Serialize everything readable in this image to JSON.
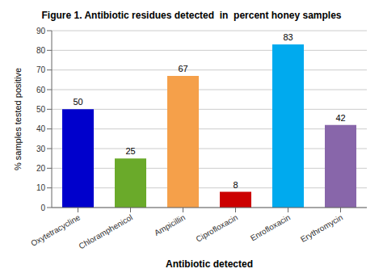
{
  "chart_data": {
    "type": "bar",
    "title": "Figure 1. Antibiotic residues detected  in  percent honey samples",
    "xlabel": "Antibiotic detected",
    "ylabel": "% samples tested positive",
    "categories": [
      "Oxytetracycline",
      "Chloramphenicol",
      "Ampicillin",
      "Ciprofloxacin",
      "Enrofloxacin",
      "Erythromycin"
    ],
    "values": [
      50,
      25,
      67,
      8,
      83,
      42
    ],
    "colors": [
      "#0000cc",
      "#6aaa2a",
      "#f5a04a",
      "#cc0000",
      "#00aaee",
      "#8866aa"
    ],
    "ylim": [
      0,
      90
    ],
    "yticks": [
      0,
      10,
      20,
      30,
      40,
      50,
      60,
      70,
      80,
      90
    ],
    "grid": true,
    "data_labels": true
  }
}
